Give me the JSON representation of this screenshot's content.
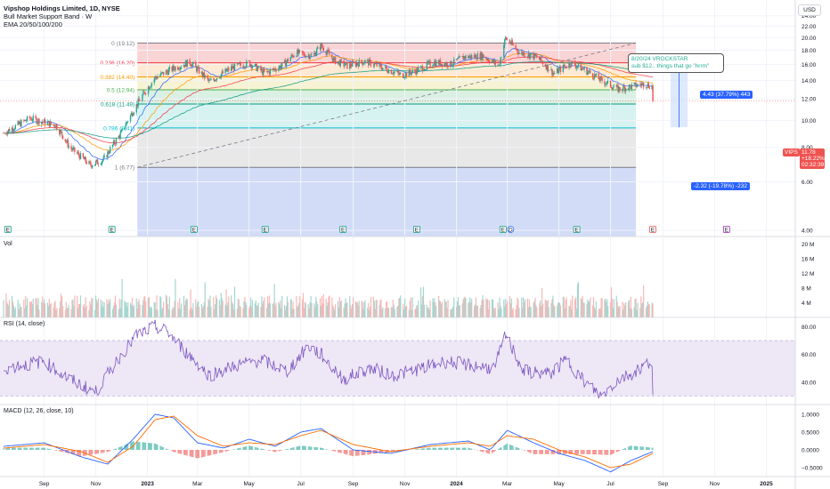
{
  "header": {
    "title": "Vipshop Holdings Limited, 1D, NYSE",
    "indicator1": "Bull Market Support Band · W",
    "indicator2": "EMA 20/50/100/200"
  },
  "currency_button": "USD",
  "panes": {
    "vol_label": "Vol",
    "rsi_label": "RSI (14, close)",
    "macd_label": "MACD (12, 26, close, 10)"
  },
  "note": {
    "line1": "8/20/24 VROCKSTAR",
    "line2": "sub $12.. things that go \"hrrm\""
  },
  "measure": {
    "up": "4.43 (37.79%) 443",
    "down": "-2.32 (-19.78%) -232"
  },
  "price_tag": {
    "symbol": "VIPS",
    "price": "11.78",
    "change": "+18.22%",
    "countdown": "02:32:39"
  },
  "event_icons": [
    "E",
    "E",
    "E",
    "E",
    "E",
    "E",
    "E",
    "D",
    "E",
    "E",
    "E"
  ],
  "colors": {
    "up": "#26a69a",
    "down": "#ef5350",
    "rsi": "#7e57c2",
    "macd": "#2962ff",
    "signal": "#ff6d00",
    "accent": "#2962ff"
  },
  "chart_data": [
    {
      "type": "candlestick",
      "title": "Vipshop Holdings Limited, 1D, NYSE",
      "x_ticks": [
        "Sep",
        "Nov",
        "2023",
        "Mar",
        "May",
        "Jul",
        "Sep",
        "Nov",
        "2024",
        "Mar",
        "May",
        "Jul",
        "Sep",
        "Nov",
        "2025"
      ],
      "y_ticks": [
        4,
        6,
        8,
        10,
        12,
        14,
        16,
        18,
        20,
        22,
        24
      ],
      "y_tick_labels": [
        "4.00",
        "6.00",
        "8.00",
        "10.00",
        "12.00",
        "14.00",
        "16.00",
        "18.00",
        "20.00",
        "22.00",
        "24.00"
      ],
      "ylim": [
        3.8,
        25.8
      ],
      "scale": "log",
      "last_price": 11.78,
      "price_path": {
        "dates": [
          "2022-07-15",
          "2022-08-15",
          "2022-09-15",
          "2022-10-01",
          "2022-10-25",
          "2022-11-10",
          "2022-12-01",
          "2022-12-20",
          "2023-01-10",
          "2023-02-01",
          "2023-02-20",
          "2023-03-15",
          "2023-04-10",
          "2023-05-01",
          "2023-05-20",
          "2023-06-10",
          "2023-06-25",
          "2023-07-15",
          "2023-07-25",
          "2023-08-10",
          "2023-08-25",
          "2023-09-15",
          "2023-10-10",
          "2023-10-28",
          "2023-11-15",
          "2023-12-05",
          "2023-12-25",
          "2024-01-10",
          "2024-02-01",
          "2024-02-20",
          "2024-02-28",
          "2024-03-15",
          "2024-04-05",
          "2024-04-25",
          "2024-05-15",
          "2024-06-05",
          "2024-06-20",
          "2024-07-10",
          "2024-07-25",
          "2024-08-10",
          "2024-08-19",
          "2024-08-20"
        ],
        "close": [
          9.0,
          10.2,
          9.6,
          8.0,
          6.9,
          7.2,
          9.0,
          11.5,
          14.3,
          15.5,
          16.3,
          13.8,
          15.5,
          16.2,
          14.8,
          15.9,
          17.6,
          17.2,
          18.7,
          16.5,
          15.8,
          16.4,
          15.4,
          14.6,
          15.2,
          16.3,
          16.0,
          17.0,
          17.2,
          15.8,
          19.9,
          17.7,
          17.0,
          14.8,
          16.2,
          15.0,
          14.0,
          13.0,
          13.3,
          13.6,
          13.3,
          11.78
        ]
      },
      "fibonacci": {
        "levels": [
          "0",
          "0.236",
          "0.382",
          "0.5",
          "0.618",
          "0.786",
          "1"
        ],
        "prices": [
          19.12,
          16.2,
          14.4,
          12.94,
          11.49,
          9.41,
          6.77
        ],
        "labels": [
          "0 (19.12)",
          "0.236 (16.20)",
          "0.382 (14.40)",
          "0.5 (12.94)",
          "0.618 (11.49)",
          "0.786 (9.41)",
          "1 (6.77)"
        ]
      },
      "ema": [
        {
          "period": 20,
          "color": "#2962ff"
        },
        {
          "period": 50,
          "color": "#ff9800"
        },
        {
          "period": 100,
          "color": "#f23645"
        },
        {
          "period": 200,
          "color": "#089981"
        }
      ]
    },
    {
      "type": "bar",
      "name": "Vol",
      "y_ticks": [
        4,
        8,
        12,
        16,
        20
      ],
      "y_tick_labels": [
        "4 M",
        "8 M",
        "12 M",
        "16 M",
        "20 M"
      ],
      "ylim": [
        0,
        22
      ]
    },
    {
      "type": "line",
      "name": "RSI (14, close)",
      "y_ticks": [
        40,
        60,
        80
      ],
      "y_tick_labels": [
        "40.00",
        "60.00",
        "80.00"
      ],
      "ylim": [
        24,
        86
      ],
      "band": [
        30,
        70
      ],
      "dates": [
        "2022-07-15",
        "2022-09-01",
        "2022-10-01",
        "2022-11-01",
        "2022-12-01",
        "2022-12-20",
        "2023-01-10",
        "2023-01-25",
        "2023-02-15",
        "2023-03-15",
        "2023-04-15",
        "2023-05-15",
        "2023-06-15",
        "2023-07-10",
        "2023-07-25",
        "2023-08-20",
        "2023-09-20",
        "2023-10-20",
        "2023-11-20",
        "2023-12-20",
        "2024-01-20",
        "2024-02-15",
        "2024-02-28",
        "2024-03-20",
        "2024-04-20",
        "2024-05-10",
        "2024-06-01",
        "2024-06-20",
        "2024-07-10",
        "2024-07-25",
        "2024-08-10",
        "2024-08-19",
        "2024-08-20"
      ],
      "values": [
        50,
        55,
        42,
        33,
        60,
        74,
        80,
        76,
        62,
        45,
        52,
        56,
        48,
        66,
        60,
        42,
        50,
        45,
        50,
        55,
        52,
        50,
        74,
        48,
        46,
        56,
        40,
        30,
        42,
        46,
        52,
        56,
        33
      ]
    },
    {
      "type": "line",
      "name": "MACD (12, 26, close, 10)",
      "y_ticks": [
        -0.5,
        0,
        0.5,
        1
      ],
      "y_tick_labels": [
        "−0.5000",
        "0.0000",
        "0.5000",
        "1.0000"
      ],
      "ylim": [
        -0.75,
        1.25
      ],
      "dates": [
        "2022-07-15",
        "2022-09-01",
        "2022-10-15",
        "2022-11-15",
        "2022-12-15",
        "2023-01-10",
        "2023-02-01",
        "2023-03-01",
        "2023-04-01",
        "2023-05-01",
        "2023-06-01",
        "2023-07-01",
        "2023-07-25",
        "2023-09-01",
        "2023-10-15",
        "2023-12-01",
        "2024-01-15",
        "2024-02-10",
        "2024-03-01",
        "2024-04-01",
        "2024-05-01",
        "2024-06-01",
        "2024-07-01",
        "2024-07-25",
        "2024-08-20"
      ],
      "macd": [
        0.1,
        0.2,
        -0.2,
        -0.4,
        0.3,
        1.0,
        0.9,
        0.2,
        0.05,
        0.3,
        0.1,
        0.5,
        0.6,
        0.0,
        -0.1,
        0.15,
        0.25,
        0.0,
        0.55,
        0.2,
        -0.1,
        -0.3,
        -0.62,
        -0.3,
        -0.05
      ],
      "signal": [
        0.05,
        0.15,
        -0.05,
        -0.35,
        0.1,
        0.85,
        0.95,
        0.4,
        0.1,
        0.2,
        0.15,
        0.4,
        0.55,
        0.15,
        -0.05,
        0.1,
        0.2,
        0.1,
        0.4,
        0.3,
        0.0,
        -0.2,
        -0.5,
        -0.4,
        -0.1
      ]
    }
  ]
}
